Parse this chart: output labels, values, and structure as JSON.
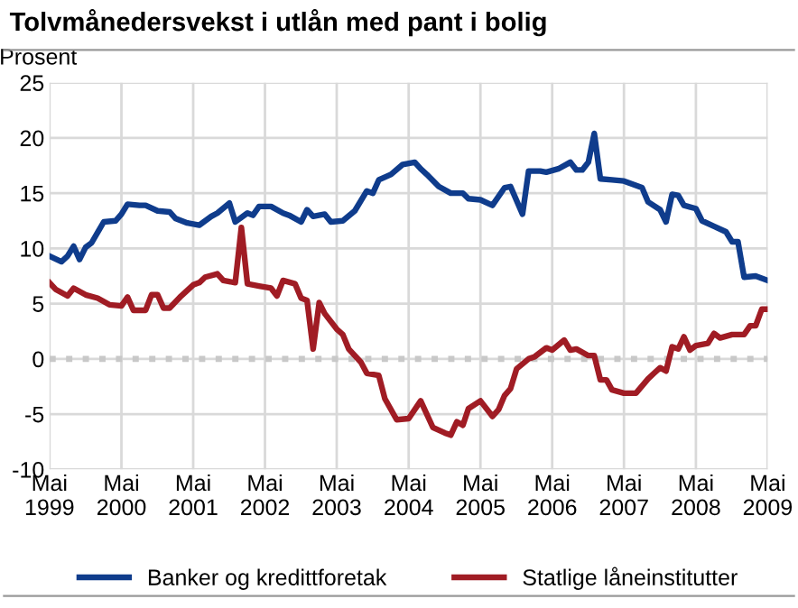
{
  "chart_data": {
    "type": "line",
    "title": "Tolvmånedersvekst i utlån med pant i bolig",
    "ylabel": "Prosent",
    "xlim": [
      "1999-05",
      "2009-05"
    ],
    "xticks": [
      {
        "value": "1999-05",
        "label": "Mai\n1999"
      },
      {
        "value": "2000-05",
        "label": "Mai\n2000"
      },
      {
        "value": "2001-05",
        "label": "Mai\n2001"
      },
      {
        "value": "2002-05",
        "label": "Mai\n2002"
      },
      {
        "value": "2003-05",
        "label": "Mai\n2003"
      },
      {
        "value": "2004-05",
        "label": "Mai\n2004"
      },
      {
        "value": "2005-05",
        "label": "Mai\n2005"
      },
      {
        "value": "2006-05",
        "label": "Mai\n2006"
      },
      {
        "value": "2007-05",
        "label": "Mai\n2007"
      },
      {
        "value": "2008-05",
        "label": "Mai\n2008"
      },
      {
        "value": "2009-05",
        "label": "Mai\n2009"
      }
    ],
    "ylim": [
      -10,
      25
    ],
    "yticks": [
      -10,
      -5,
      0,
      5,
      10,
      15,
      20,
      25
    ],
    "grid": true,
    "legend": "bottom",
    "marker": "none",
    "line_style": "solid",
    "ref_lines": [
      {
        "axis": "y",
        "value": 0,
        "color": "#c8c8c8",
        "line_style": "dotted"
      }
    ],
    "series": [
      {
        "name": "Banker og kredittforetak",
        "color": "#0f3c8c",
        "x": [
          "1999-05",
          "1999-07",
          "1999-08",
          "1999-09",
          "1999-10",
          "1999-11",
          "1999-12",
          "2000-02",
          "2000-04",
          "2000-05",
          "2000-06",
          "2000-08",
          "2000-09",
          "2000-11",
          "2001-01",
          "2001-02",
          "2001-04",
          "2001-06",
          "2001-08",
          "2001-09",
          "2001-11",
          "2001-12",
          "2002-02",
          "2002-03",
          "2002-04",
          "2002-06",
          "2002-08",
          "2002-09",
          "2002-11",
          "2002-12",
          "2003-01",
          "2003-03",
          "2003-04",
          "2003-06",
          "2003-08",
          "2003-10",
          "2003-11",
          "2003-12",
          "2004-02",
          "2004-04",
          "2004-06",
          "2004-07",
          "2004-08",
          "2004-10",
          "2004-12",
          "2005-02",
          "2005-03",
          "2005-05",
          "2005-07",
          "2005-09",
          "2005-10",
          "2005-12",
          "2006-01",
          "2006-03",
          "2006-04",
          "2006-06",
          "2006-08",
          "2006-09",
          "2006-10",
          "2006-11",
          "2006-12",
          "2007-01",
          "2007-03",
          "2007-05",
          "2007-08",
          "2007-09",
          "2007-11",
          "2007-12",
          "2008-01",
          "2008-02",
          "2008-03",
          "2008-05",
          "2008-06",
          "2008-08",
          "2008-10",
          "2008-11",
          "2008-12",
          "2009-01",
          "2009-03",
          "2009-05"
        ],
        "values": [
          9.3,
          8.8,
          9.3,
          10.2,
          9.0,
          10.1,
          10.5,
          12.4,
          12.5,
          13.1,
          14.0,
          13.9,
          13.9,
          13.4,
          13.3,
          12.7,
          12.3,
          12.1,
          12.9,
          13.2,
          14.1,
          12.4,
          13.2,
          13.0,
          13.8,
          13.8,
          13.2,
          13.0,
          12.4,
          13.5,
          12.9,
          13.1,
          12.4,
          12.5,
          13.4,
          15.2,
          15.0,
          16.2,
          16.7,
          17.6,
          17.8,
          17.2,
          16.7,
          15.6,
          15.0,
          15.0,
          14.5,
          14.4,
          13.9,
          15.5,
          15.6,
          13.1,
          17.0,
          17.0,
          16.9,
          17.2,
          17.8,
          17.1,
          17.1,
          17.8,
          20.4,
          16.3,
          16.2,
          16.1,
          15.5,
          14.2,
          13.5,
          12.4,
          14.9,
          14.8,
          13.9,
          13.6,
          12.5,
          12.0,
          11.5,
          10.6,
          10.6,
          7.4,
          7.5,
          7.1
        ]
      },
      {
        "name": "Statlige låneinstitutter",
        "color": "#a01c24",
        "x": [
          "1999-05",
          "1999-06",
          "1999-08",
          "1999-09",
          "1999-11",
          "2000-01",
          "2000-03",
          "2000-05",
          "2000-06",
          "2000-07",
          "2000-09",
          "2000-10",
          "2000-11",
          "2000-12",
          "2001-01",
          "2001-03",
          "2001-05",
          "2001-06",
          "2001-07",
          "2001-09",
          "2001-10",
          "2001-12",
          "2002-01",
          "2002-02",
          "2002-04",
          "2002-06",
          "2002-07",
          "2002-08",
          "2002-10",
          "2002-11",
          "2002-12",
          "2003-01",
          "2003-02",
          "2003-03",
          "2003-05",
          "2003-06",
          "2003-07",
          "2003-09",
          "2003-10",
          "2003-12",
          "2004-01",
          "2004-03",
          "2004-05",
          "2004-07",
          "2004-09",
          "2004-11",
          "2004-12",
          "2005-01",
          "2005-02",
          "2005-03",
          "2005-05",
          "2005-07",
          "2005-08",
          "2005-09",
          "2005-10",
          "2005-11",
          "2006-01",
          "2006-02",
          "2006-04",
          "2006-05",
          "2006-07",
          "2006-08",
          "2006-09",
          "2006-11",
          "2006-12",
          "2007-01",
          "2007-02",
          "2007-03",
          "2007-05",
          "2007-07",
          "2007-09",
          "2007-10",
          "2007-11",
          "2007-12",
          "2008-01",
          "2008-02",
          "2008-03",
          "2008-04",
          "2008-05",
          "2008-07",
          "2008-08",
          "2008-09",
          "2008-11",
          "2009-01",
          "2009-02",
          "2009-03",
          "2009-04",
          "2009-05"
        ],
        "values": [
          6.9,
          6.3,
          5.7,
          6.4,
          5.8,
          5.5,
          4.9,
          4.8,
          5.6,
          4.4,
          4.4,
          5.8,
          5.8,
          4.6,
          4.6,
          5.7,
          6.7,
          6.9,
          7.4,
          7.7,
          7.1,
          6.9,
          11.9,
          6.8,
          6.6,
          6.4,
          5.7,
          7.1,
          6.8,
          5.5,
          5.3,
          0.9,
          5.1,
          4.1,
          2.7,
          2.2,
          0.9,
          -0.3,
          -1.3,
          -1.5,
          -3.6,
          -5.5,
          -5.4,
          -3.8,
          -6.2,
          -6.7,
          -6.9,
          -5.7,
          -6.0,
          -4.5,
          -3.8,
          -5.2,
          -4.6,
          -3.3,
          -2.7,
          -0.9,
          0.0,
          0.2,
          1.0,
          0.8,
          1.7,
          0.8,
          0.9,
          0.3,
          0.3,
          -1.9,
          -1.9,
          -2.8,
          -3.1,
          -3.1,
          -1.8,
          -1.3,
          -0.8,
          -1.1,
          1.1,
          0.9,
          2.0,
          0.8,
          1.2,
          1.4,
          2.3,
          1.9,
          2.2,
          2.2,
          3.0,
          3.0,
          4.5,
          4.5
        ]
      }
    ]
  }
}
